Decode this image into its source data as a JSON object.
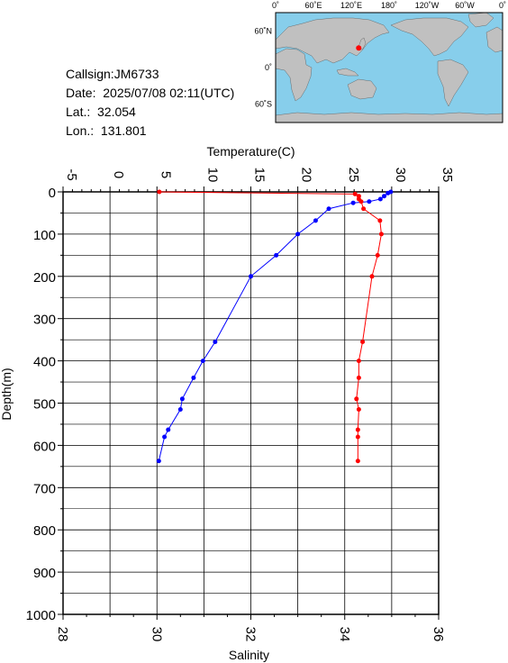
{
  "station": {
    "callsign": "Callsign:JM6733",
    "date": "Date:  2025/07/08 02:11(UTC)",
    "lat": "Lat.:  32.054",
    "lon": "Lon.:  131.801"
  },
  "map": {
    "lon_labels": [
      "0˚",
      "60˚E",
      "120˚E",
      "180˚",
      "120˚W",
      "60˚W",
      "0˚"
    ],
    "lat_labels": [
      "60˚N",
      "0˚",
      "60˚S"
    ],
    "ocean_color": "#87ceeb",
    "land_color": "#c0c0c0",
    "marker_color": "#ff0000",
    "station_lon": 131.801,
    "station_lat": 32.054
  },
  "chart_data": {
    "type": "line",
    "title": "",
    "temperature_axis": {
      "label": "Temperature(C)",
      "range": [
        -5,
        35
      ],
      "ticks": [
        "-5",
        "0",
        "5",
        "10",
        "15",
        "20",
        "25",
        "30",
        "35"
      ]
    },
    "salinity_axis": {
      "label": "Salinity",
      "range": [
        28,
        36
      ],
      "ticks": [
        "28",
        "30",
        "32",
        "34",
        "36"
      ]
    },
    "depth_axis": {
      "label": "Depth(m)",
      "range": [
        0,
        1000
      ],
      "ticks": [
        "0",
        "100",
        "200",
        "300",
        "400",
        "500",
        "600",
        "700",
        "800",
        "900",
        "1000"
      ]
    },
    "grid": true,
    "series": [
      {
        "kind": "temperature",
        "color": "#0000ff",
        "depth": [
          0,
          3,
          10,
          17,
          23,
          26,
          40,
          68,
          100,
          150,
          200,
          355,
          400,
          440,
          490,
          515,
          563,
          580,
          637
        ],
        "values": [
          29.9,
          29.6,
          29.2,
          28.8,
          27.6,
          25.9,
          23.3,
          21.9,
          20.0,
          17.7,
          15.0,
          11.2,
          9.9,
          8.9,
          7.7,
          7.5,
          6.2,
          5.8,
          5.2
        ]
      },
      {
        "kind": "salinity",
        "color": "#ff0000",
        "depth": [
          0,
          5,
          10,
          17,
          23,
          40,
          68,
          100,
          150,
          200,
          355,
          400,
          440,
          490,
          515,
          563,
          580,
          637
        ],
        "values": [
          30.05,
          34.22,
          34.3,
          34.3,
          34.35,
          34.4,
          34.75,
          34.78,
          34.7,
          34.58,
          34.38,
          34.3,
          34.3,
          34.25,
          34.3,
          34.28,
          34.28,
          34.28
        ]
      }
    ]
  }
}
